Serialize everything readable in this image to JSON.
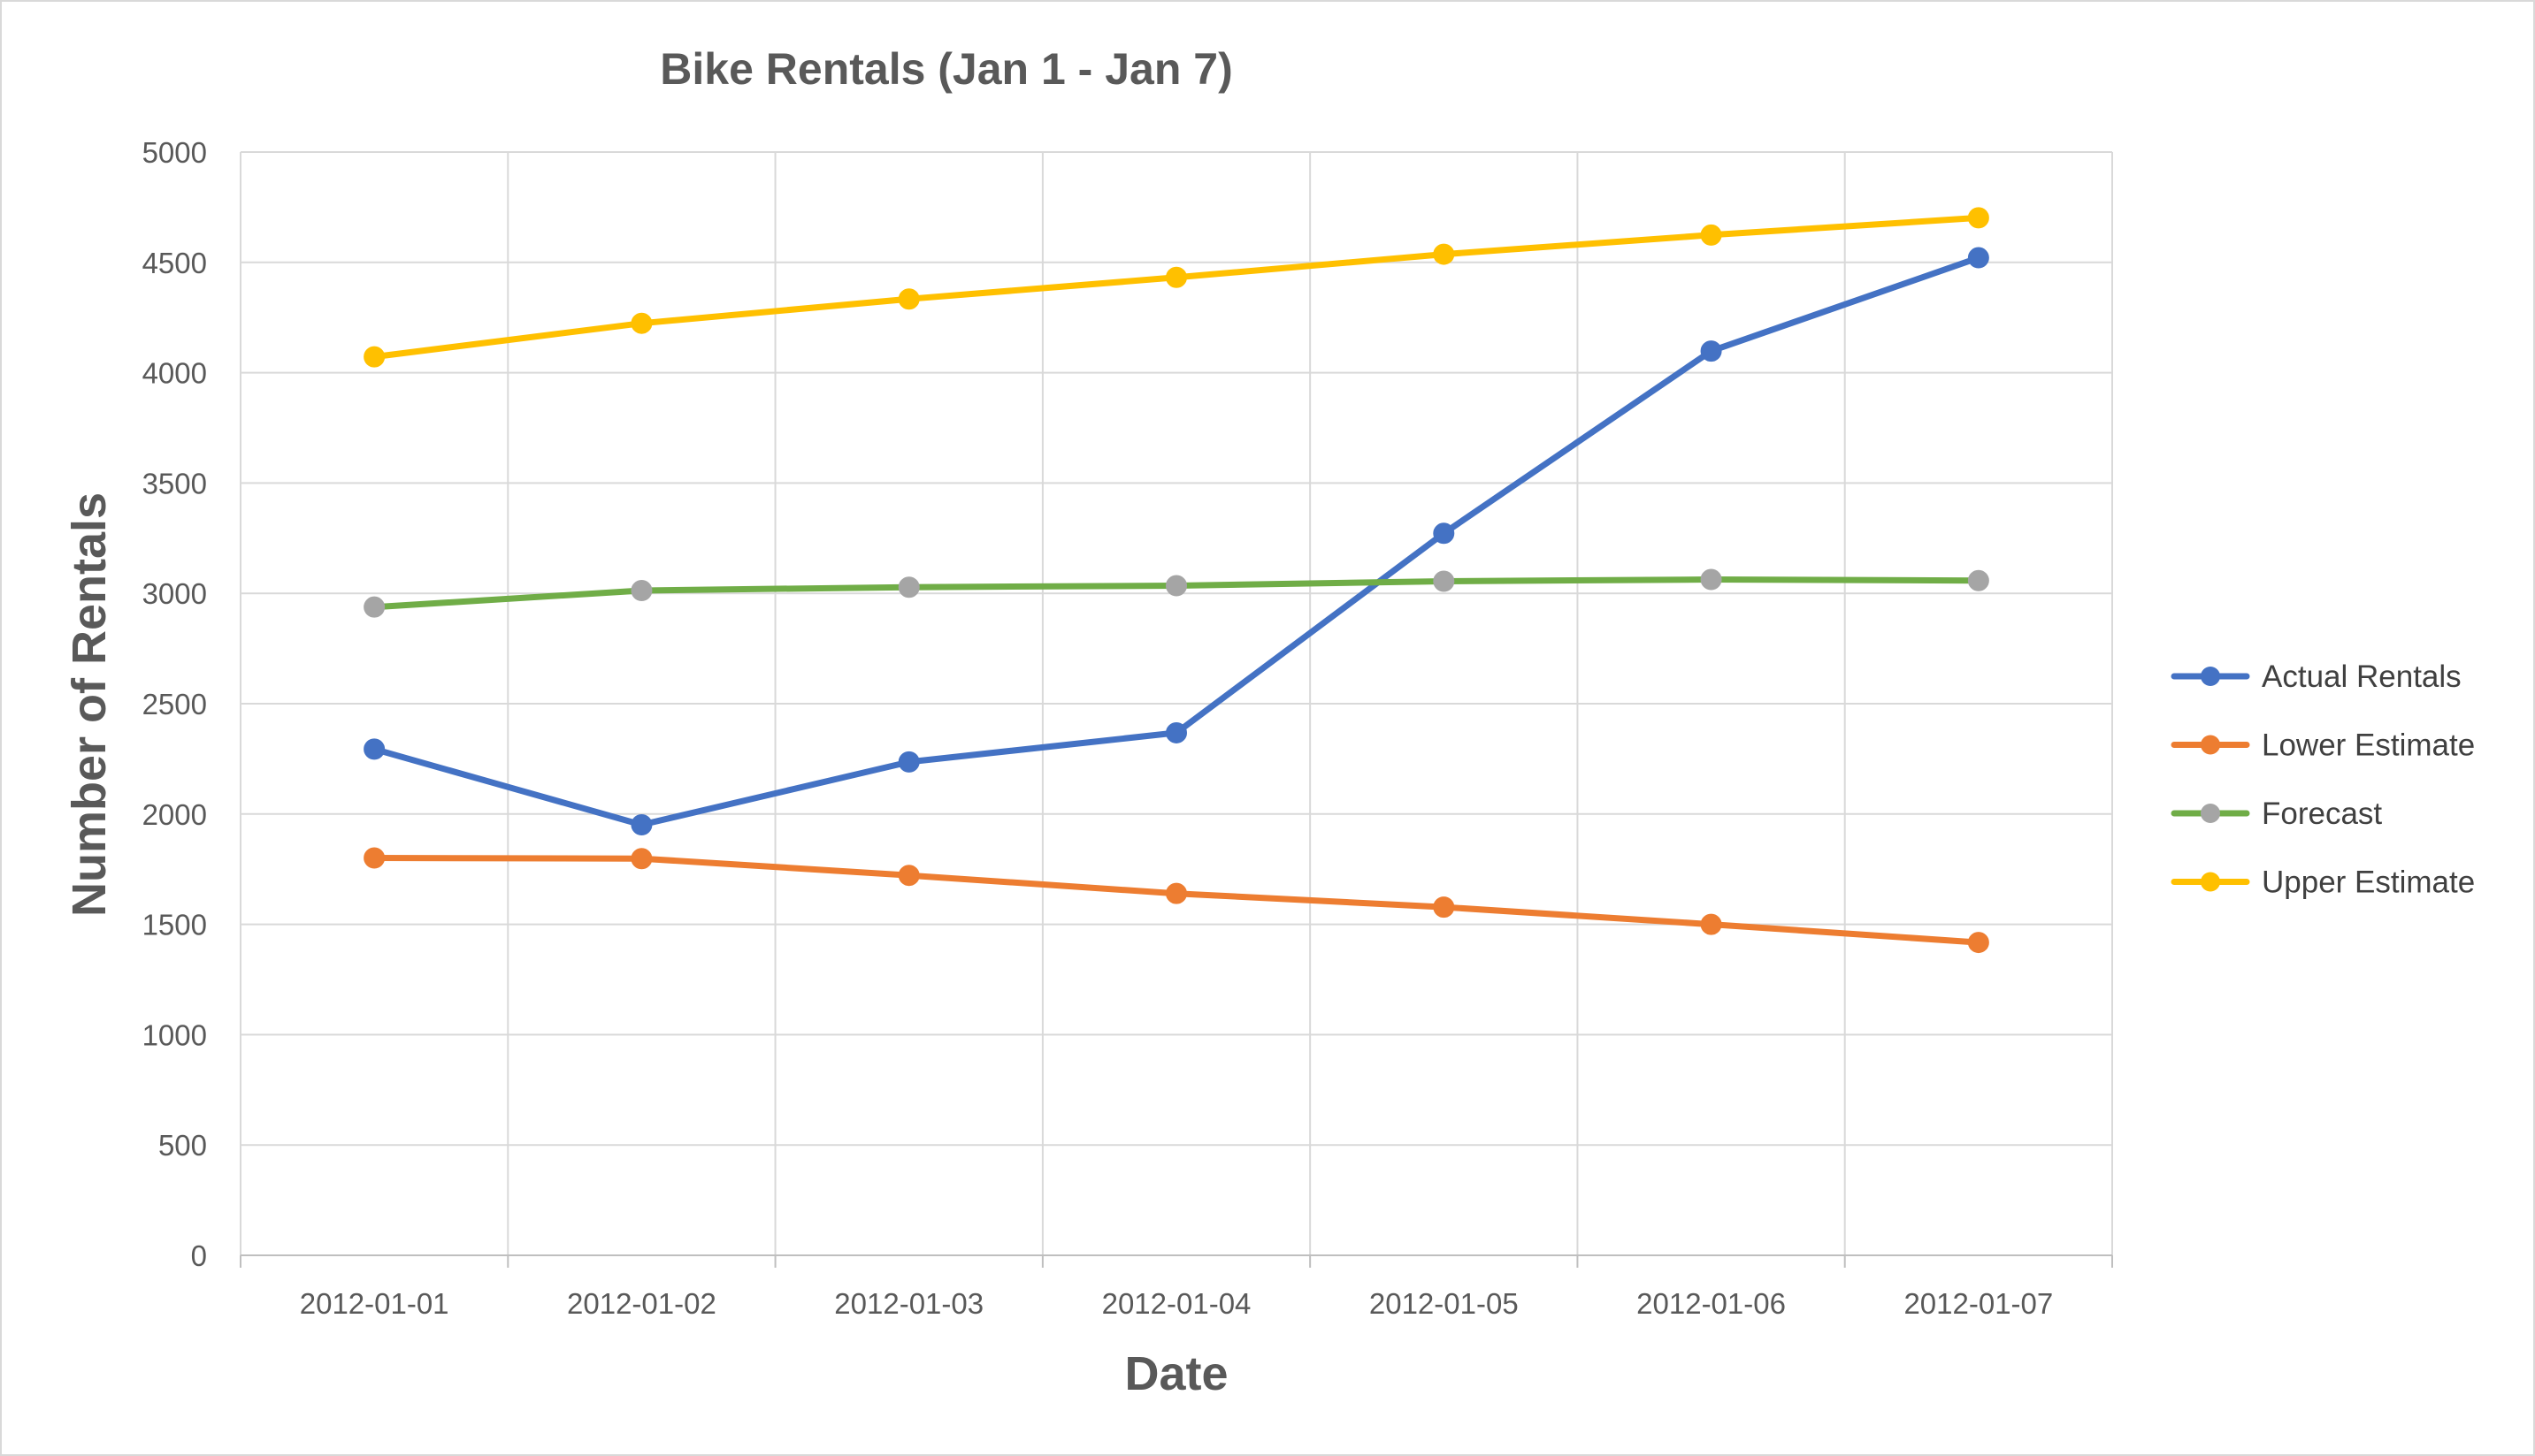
{
  "chart_data": {
    "type": "line",
    "title": "Bike Rentals (Jan 1 - Jan 7)",
    "xlabel": "Date",
    "ylabel": "Number of Rentals",
    "categories": [
      "2012-01-01",
      "2012-01-02",
      "2012-01-03",
      "2012-01-04",
      "2012-01-05",
      "2012-01-06",
      "2012-01-07"
    ],
    "ylim": [
      0,
      5000
    ],
    "yticks": [
      0,
      500,
      1000,
      1500,
      2000,
      2500,
      3000,
      3500,
      4000,
      4500,
      5000
    ],
    "grid": true,
    "legend_position": "right",
    "series": [
      {
        "name": "Actual Rentals",
        "line_color": "#4472c4",
        "marker_color": "#4472c4",
        "values": [
          2294,
          1951,
          2236,
          2368,
          3272,
          4098,
          4521
        ]
      },
      {
        "name": "Lower Estimate",
        "line_color": "#ed7d31",
        "marker_color": "#ed7d31",
        "values": [
          1801,
          1798,
          1722,
          1640,
          1578,
          1500,
          1418
        ]
      },
      {
        "name": "Forecast",
        "line_color": "#70ad47",
        "marker_color": "#a5a5a5",
        "values": [
          2938,
          3013,
          3028,
          3035,
          3055,
          3063,
          3058
        ]
      },
      {
        "name": "Upper Estimate",
        "line_color": "#ffc000",
        "marker_color": "#ffc000",
        "values": [
          4072,
          4224,
          4334,
          4432,
          4537,
          4624,
          4702
        ]
      }
    ]
  }
}
